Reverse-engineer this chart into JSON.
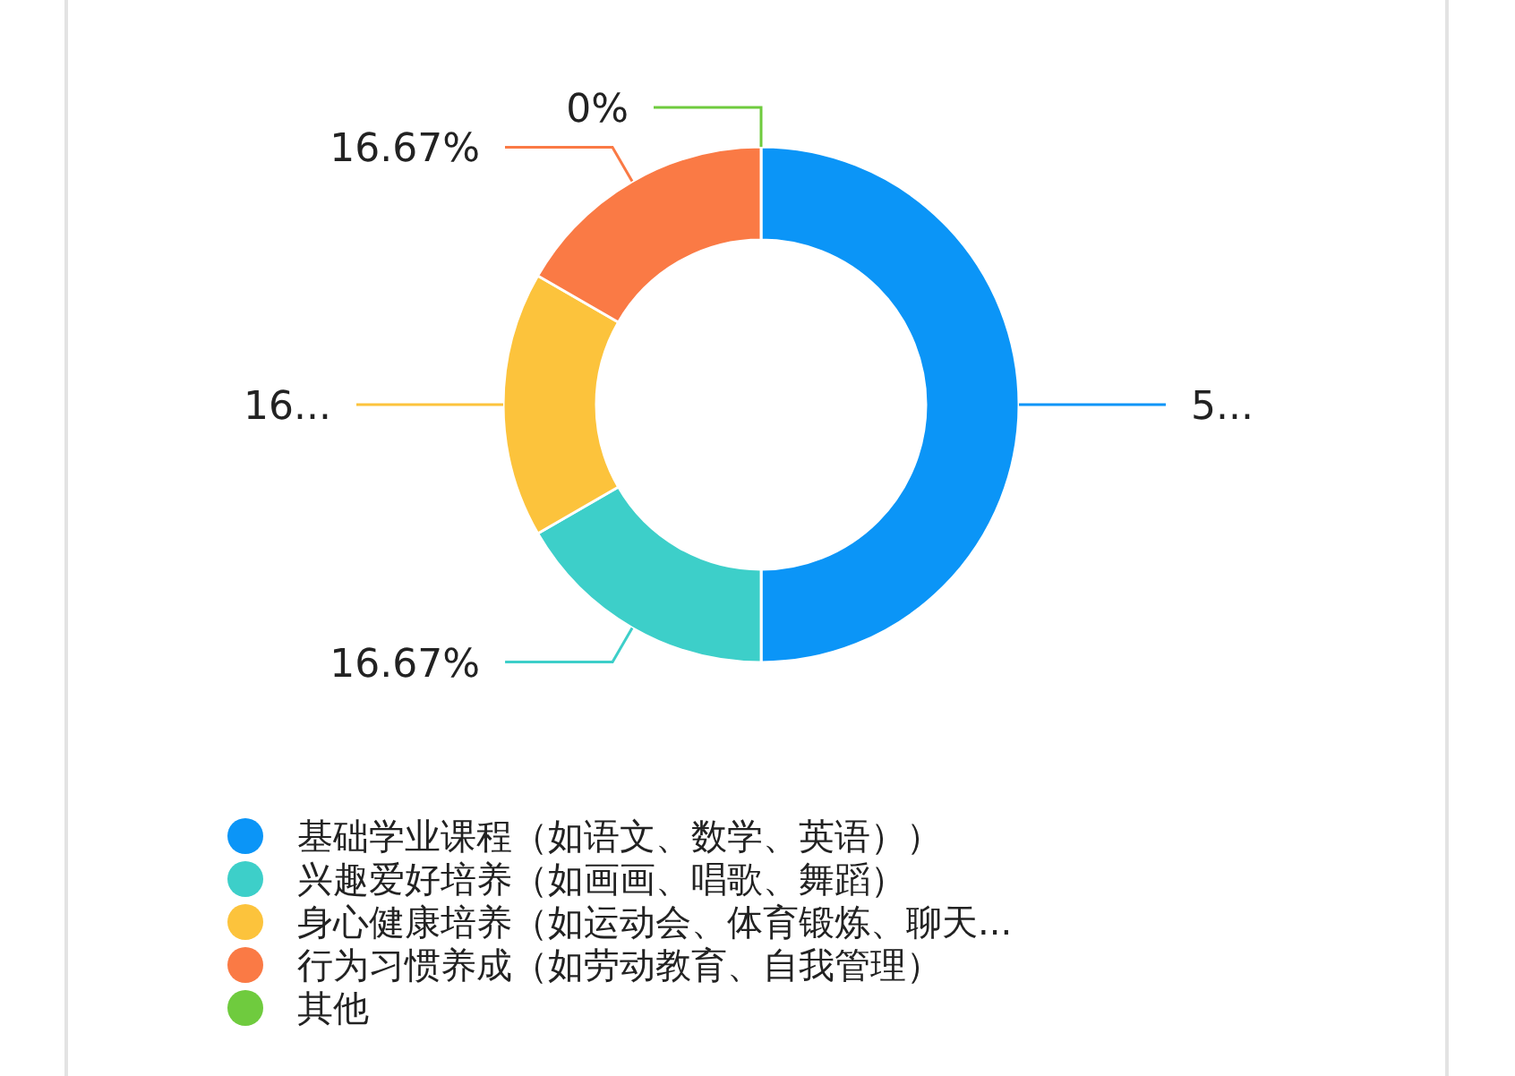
{
  "chart_data": {
    "type": "donut",
    "categories": [
      "基础学业课程（如语文、数学、英语））",
      "兴趣爱好培养（如画画、唱歌、舞蹈）",
      "身心健康培养（如运动会、体育锻炼、聊天...",
      "行为习惯养成（如劳动教育、自我管理）",
      "其他"
    ],
    "values": [
      50,
      16.67,
      16.67,
      16.67,
      0
    ],
    "colors": [
      "#0b95f7",
      "#3dcfc9",
      "#fcc33c",
      "#fa7a45",
      "#6fcb3e"
    ],
    "value_labels": [
      "5...",
      "16.67%",
      "16...",
      "16.67%",
      "0%"
    ],
    "legend": "bottom"
  }
}
